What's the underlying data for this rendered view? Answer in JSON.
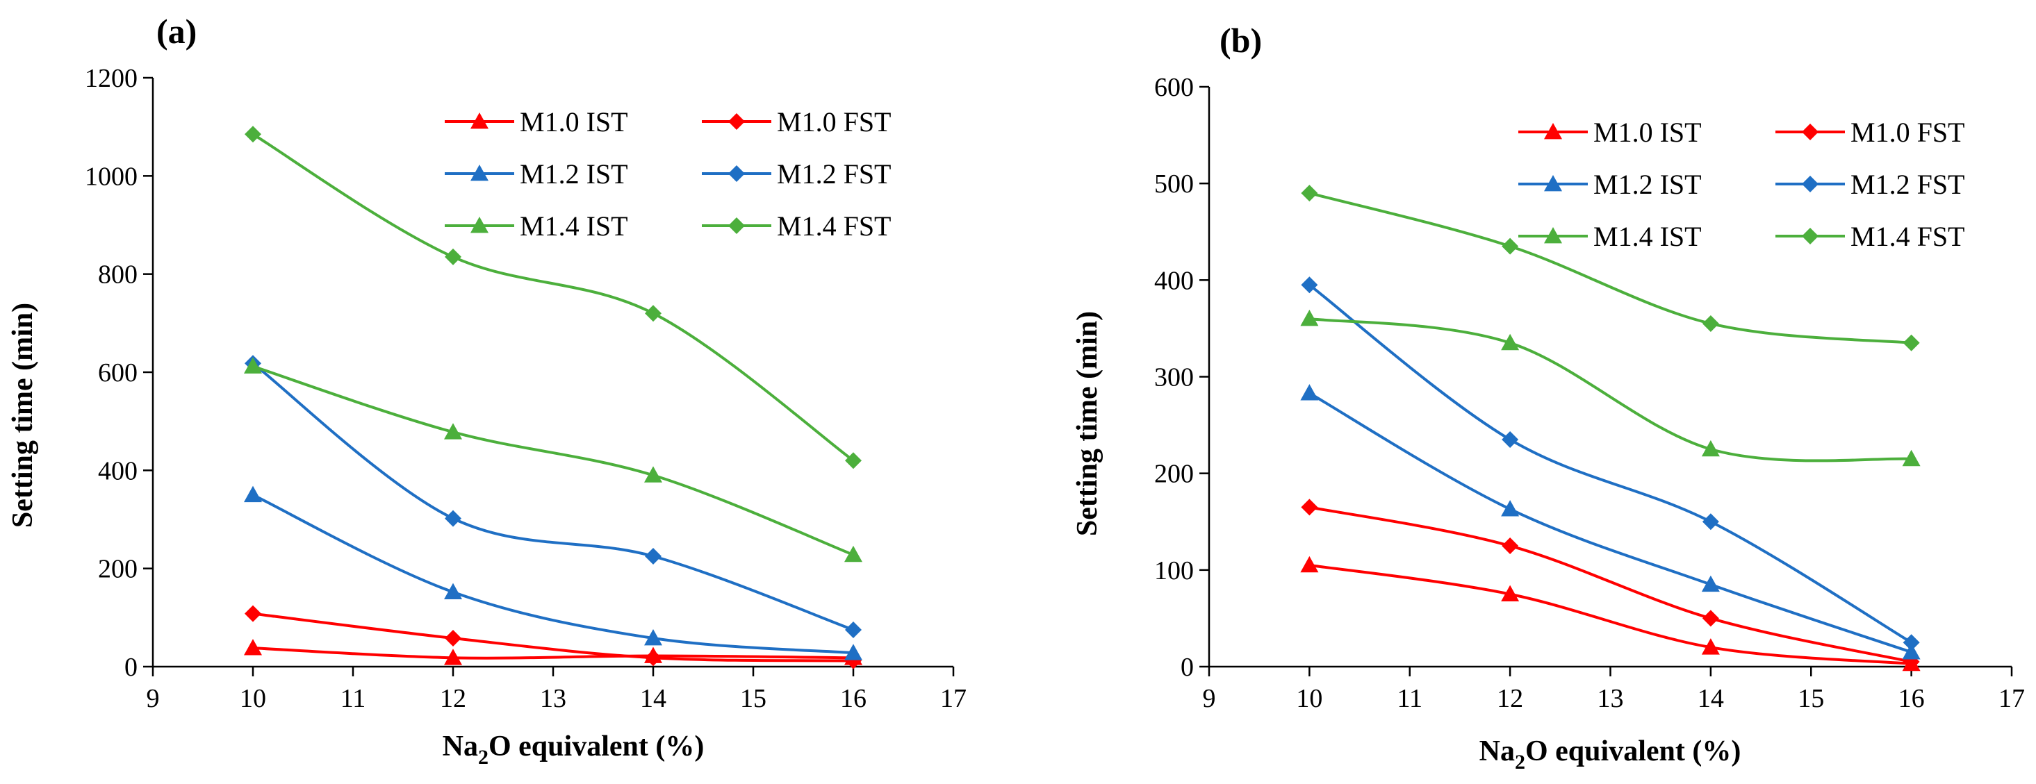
{
  "chart_data": [
    {
      "type": "line",
      "panel_label": "(a)",
      "title": "",
      "xlabel_pre": "Na",
      "xlabel_sub": "2",
      "xlabel_post": "O equivalent (%)",
      "ylabel": "Setting time (min)",
      "xlim": [
        9,
        17
      ],
      "ylim": [
        0,
        1200
      ],
      "xticks": [
        9,
        10,
        11,
        12,
        13,
        14,
        15,
        16,
        17
      ],
      "yticks": [
        0,
        200,
        400,
        600,
        800,
        1000,
        1200
      ],
      "legend_position": "top-right",
      "x": [
        10,
        12,
        14,
        16
      ],
      "series": [
        {
          "name": "M1.0 IST",
          "color": "#ff0000",
          "marker": "triangle",
          "values": [
            38,
            18,
            22,
            18
          ]
        },
        {
          "name": "M1.0 FST",
          "color": "#ff0000",
          "marker": "diamond",
          "values": [
            108,
            58,
            18,
            12
          ]
        },
        {
          "name": "M1.2 IST",
          "color": "#1f6fc4",
          "marker": "triangle",
          "values": [
            350,
            152,
            58,
            28
          ]
        },
        {
          "name": "M1.2 FST",
          "color": "#1f6fc4",
          "marker": "diamond",
          "values": [
            618,
            302,
            225,
            75
          ]
        },
        {
          "name": "M1.4 IST",
          "color": "#4caf3c",
          "marker": "triangle",
          "values": [
            612,
            478,
            390,
            228
          ]
        },
        {
          "name": "M1.4 FST",
          "color": "#4caf3c",
          "marker": "diamond",
          "values": [
            1085,
            835,
            720,
            420
          ]
        }
      ]
    },
    {
      "type": "line",
      "panel_label": "(b)",
      "title": "",
      "xlabel_pre": "Na",
      "xlabel_sub": "2",
      "xlabel_post": "O equivalent (%)",
      "ylabel": "Setting time (min)",
      "xlim": [
        9,
        17
      ],
      "ylim": [
        0,
        600
      ],
      "xticks": [
        9,
        10,
        11,
        12,
        13,
        14,
        15,
        16,
        17
      ],
      "yticks": [
        0,
        100,
        200,
        300,
        400,
        500,
        600
      ],
      "legend_position": "top-right",
      "x": [
        10,
        12,
        14,
        16
      ],
      "series": [
        {
          "name": "M1.0 IST",
          "color": "#ff0000",
          "marker": "triangle",
          "values": [
            105,
            75,
            20,
            3
          ]
        },
        {
          "name": "M1.0 FST",
          "color": "#ff0000",
          "marker": "diamond",
          "values": [
            165,
            125,
            50,
            5
          ]
        },
        {
          "name": "M1.2 IST",
          "color": "#1f6fc4",
          "marker": "triangle",
          "values": [
            283,
            163,
            85,
            15
          ]
        },
        {
          "name": "M1.2 FST",
          "color": "#1f6fc4",
          "marker": "diamond",
          "values": [
            395,
            235,
            150,
            25
          ]
        },
        {
          "name": "M1.4 IST",
          "color": "#4caf3c",
          "marker": "triangle",
          "values": [
            360,
            335,
            225,
            215
          ]
        },
        {
          "name": "M1.4 FST",
          "color": "#4caf3c",
          "marker": "diamond",
          "values": [
            490,
            435,
            355,
            335
          ]
        }
      ]
    }
  ]
}
